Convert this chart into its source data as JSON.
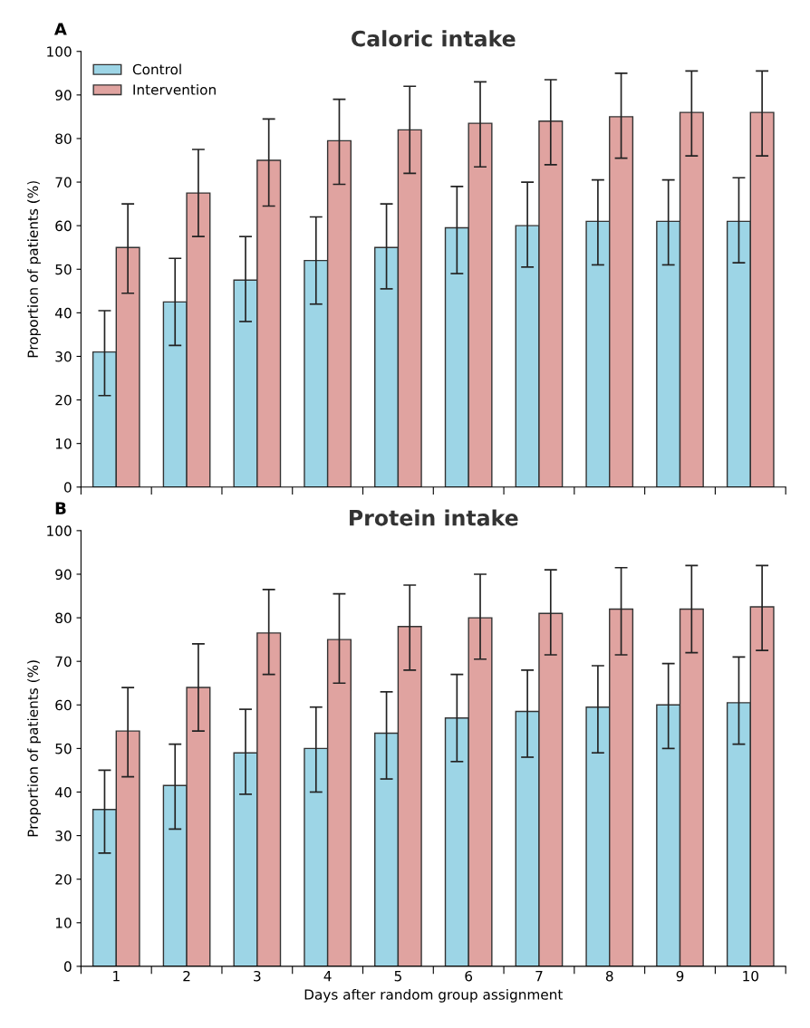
{
  "chart_data": [
    {
      "type": "bar",
      "title": "Caloric intake",
      "ylabel": "Proportion of patients (%)",
      "annotations": [
        "A"
      ],
      "categories": [
        "1",
        "2",
        "3",
        "4",
        "5",
        "6",
        "7",
        "8",
        "9",
        "10"
      ],
      "series": [
        {
          "name": "Control",
          "color": "#9dd5e6",
          "values": [
            31,
            42.5,
            47.5,
            52,
            55,
            59.5,
            60,
            61,
            61,
            61
          ],
          "errors": [
            [
              21,
              40.5
            ],
            [
              32.5,
              52.5
            ],
            [
              38,
              57.5
            ],
            [
              42,
              62
            ],
            [
              45.5,
              65
            ],
            [
              49,
              69
            ],
            [
              50.5,
              70
            ],
            [
              51,
              70.5
            ],
            [
              51,
              70.5
            ],
            [
              51.5,
              71
            ]
          ]
        },
        {
          "name": "Intervention",
          "color": "#e0a3a0",
          "values": [
            55,
            67.5,
            75,
            79.5,
            82,
            83.5,
            84,
            85,
            86,
            86
          ],
          "errors": [
            [
              44.5,
              65
            ],
            [
              57.5,
              77.5
            ],
            [
              64.5,
              84.5
            ],
            [
              69.5,
              89
            ],
            [
              72,
              92
            ],
            [
              73.5,
              93
            ],
            [
              74,
              93.5
            ],
            [
              75.5,
              95
            ],
            [
              76,
              95.5
            ],
            [
              76,
              95.5
            ]
          ]
        }
      ],
      "ylim": [
        0,
        100
      ],
      "yticks": [
        0,
        10,
        20,
        30,
        40,
        50,
        60,
        70,
        80,
        90,
        100
      ],
      "grid": false,
      "legend": "top left",
      "tick_labels": "y"
    },
    {
      "type": "bar",
      "title": "Protein intake",
      "ylabel": "Proportion of patients (%)",
      "xlabel": "Days after random group assignment",
      "annotations": [
        "B"
      ],
      "categories": [
        "1",
        "2",
        "3",
        "4",
        "5",
        "6",
        "7",
        "8",
        "9",
        "10"
      ],
      "series": [
        {
          "color": "#9dd5e6",
          "values": [
            36,
            41.5,
            49,
            50,
            53.5,
            57,
            58.5,
            59.5,
            60,
            60.5
          ],
          "errors": [
            [
              26,
              45
            ],
            [
              31.5,
              51
            ],
            [
              39.5,
              59
            ],
            [
              40,
              59.5
            ],
            [
              43,
              63
            ],
            [
              47,
              67
            ],
            [
              48,
              68
            ],
            [
              49,
              69
            ],
            [
              50,
              69.5
            ],
            [
              51,
              71
            ]
          ]
        },
        {
          "color": "#e0a3a0",
          "values": [
            54,
            64,
            76.5,
            75,
            78,
            80,
            81,
            82,
            82,
            82.5
          ],
          "errors": [
            [
              43.5,
              64
            ],
            [
              54,
              74
            ],
            [
              67,
              86.5
            ],
            [
              65,
              85.5
            ],
            [
              68,
              87.5
            ],
            [
              70.5,
              90
            ],
            [
              71.5,
              91
            ],
            [
              71.5,
              91.5
            ],
            [
              72,
              92
            ],
            [
              72.5,
              92
            ]
          ]
        }
      ],
      "ylim": [
        0,
        100
      ],
      "yticks": [
        0,
        10,
        20,
        30,
        40,
        50,
        60,
        70,
        80,
        90,
        100
      ],
      "grid": false,
      "legend": false
    }
  ]
}
